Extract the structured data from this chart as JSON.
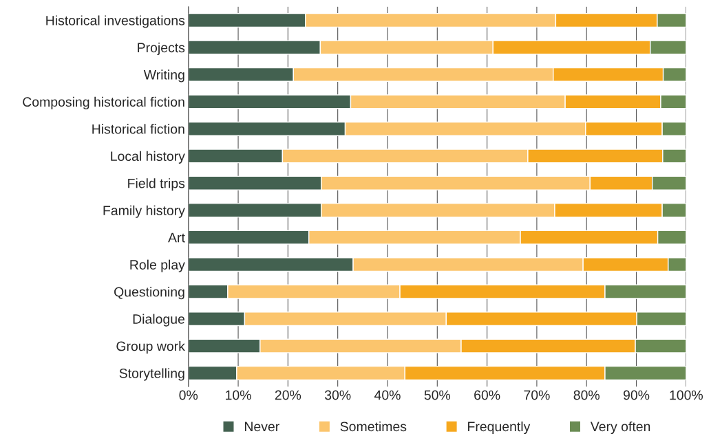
{
  "chart_data": {
    "type": "bar",
    "orientation": "horizontal",
    "stacked": true,
    "categories": [
      "Historical investigations",
      "Projects",
      "Writing",
      "Composing historical fiction",
      "Historical fiction",
      "Local history",
      "Field trips",
      "Family history",
      "Art",
      "Role play",
      "Questioning",
      "Dialogue",
      "Group work",
      "Storytelling"
    ],
    "series": [
      {
        "name": "Never",
        "color": "#436150",
        "values": [
          23.5,
          26.5,
          21.1,
          32.6,
          31.5,
          18.9,
          26.7,
          26.7,
          24.2,
          33.1,
          7.9,
          11.3,
          14.4,
          9.7
        ]
      },
      {
        "name": "Sometimes",
        "color": "#fbc56d",
        "values": [
          50.3,
          34.7,
          52.2,
          43.1,
          48.3,
          49.3,
          54.0,
          46.9,
          42.5,
          46.2,
          34.6,
          40.5,
          40.4,
          33.8
        ]
      },
      {
        "name": "Frequently",
        "color": "#f6a81e",
        "values": [
          20.4,
          31.6,
          22.1,
          19.2,
          15.4,
          27.1,
          12.5,
          21.6,
          27.6,
          17.1,
          41.2,
          38.3,
          35.0,
          40.2
        ]
      },
      {
        "name": "Very often",
        "color": "#6b8c54",
        "values": [
          5.8,
          7.2,
          4.6,
          5.1,
          4.8,
          4.7,
          6.8,
          4.8,
          5.7,
          3.6,
          16.3,
          9.9,
          10.2,
          16.3
        ]
      }
    ],
    "xlim": [
      0,
      100
    ],
    "xticks": [
      {
        "value": 0,
        "label": "0%"
      },
      {
        "value": 10,
        "label": "10%"
      },
      {
        "value": 20,
        "label": "20%"
      },
      {
        "value": 30,
        "label": "30%"
      },
      {
        "value": 40,
        "label": "40%"
      },
      {
        "value": 50,
        "label": "50%"
      },
      {
        "value": 60,
        "label": "60%"
      },
      {
        "value": 70,
        "label": "70%"
      },
      {
        "value": 80,
        "label": "80%"
      },
      {
        "value": 90,
        "label": "90%"
      },
      {
        "value": 100,
        "label": "100%"
      }
    ],
    "grid": "x",
    "legend": "bottom"
  }
}
